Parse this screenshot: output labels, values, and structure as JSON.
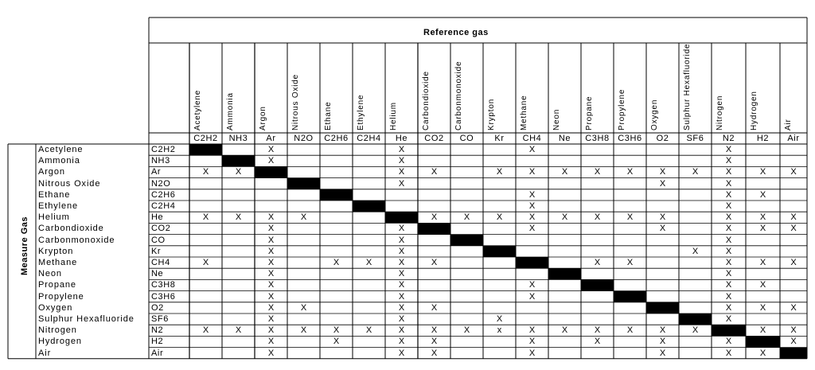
{
  "reference_header": "Reference gas",
  "measure_header": "Measure Gas",
  "reference_gases": [
    {
      "name": "Acetylene",
      "abbr": "C2H2"
    },
    {
      "name": "Ammonia",
      "abbr": "NH3"
    },
    {
      "name": "Argon",
      "abbr": "Ar"
    },
    {
      "name": "Nitrous Oxide",
      "abbr": "N2O"
    },
    {
      "name": "Ethane",
      "abbr": "C2H6"
    },
    {
      "name": "Ethylene",
      "abbr": "C2H4"
    },
    {
      "name": "Helium",
      "abbr": "He"
    },
    {
      "name": "Carbondioxide",
      "abbr": "CO2"
    },
    {
      "name": "Carbonmonoxide",
      "abbr": "CO"
    },
    {
      "name": "Krypton",
      "abbr": "Kr"
    },
    {
      "name": "Methane",
      "abbr": "CH4"
    },
    {
      "name": "Neon",
      "abbr": "Ne"
    },
    {
      "name": "Propane",
      "abbr": "C3H8"
    },
    {
      "name": "Propylene",
      "abbr": "C3H6"
    },
    {
      "name": "Oxygen",
      "abbr": "O2"
    },
    {
      "name": "Sulphur Hexafluoride",
      "abbr": "SF6"
    },
    {
      "name": "Nitrogen",
      "abbr": "N2"
    },
    {
      "name": "Hydrogen",
      "abbr": "H2"
    },
    {
      "name": "Air",
      "abbr": "Air"
    }
  ],
  "measure_gases": [
    {
      "name": "Acetylene",
      "abbr": "C2H2",
      "marks": [
        "",
        "",
        "X",
        "",
        "",
        "",
        "X",
        "",
        "",
        "",
        "X",
        "",
        "",
        "",
        "",
        "",
        "X",
        "",
        ""
      ]
    },
    {
      "name": "Ammonia",
      "abbr": "NH3",
      "marks": [
        "",
        "",
        "X",
        "",
        "",
        "",
        "X",
        "",
        "",
        "",
        "",
        "",
        "",
        "",
        "",
        "",
        "X",
        "",
        ""
      ]
    },
    {
      "name": "Argon",
      "abbr": "Ar",
      "marks": [
        "X",
        "X",
        "",
        "",
        "",
        "",
        "X",
        "X",
        "",
        "X",
        "X",
        "X",
        "X",
        "X",
        "X",
        "X",
        "X",
        "X",
        "X"
      ]
    },
    {
      "name": "Nitrous Oxide",
      "abbr": "N2O",
      "marks": [
        "",
        "",
        "",
        "",
        "",
        "",
        "X",
        "",
        "",
        "",
        "",
        "",
        "",
        "",
        "X",
        "",
        "X",
        "",
        ""
      ]
    },
    {
      "name": "Ethane",
      "abbr": "C2H6",
      "marks": [
        "",
        "",
        "",
        "",
        "",
        "",
        "",
        "",
        "",
        "",
        "X",
        "",
        "",
        "",
        "",
        "",
        "X",
        "X",
        ""
      ]
    },
    {
      "name": "Ethylene",
      "abbr": "C2H4",
      "marks": [
        "",
        "",
        "",
        "",
        "",
        "",
        "",
        "",
        "",
        "",
        "X",
        "",
        "",
        "",
        "",
        "",
        "X",
        "",
        ""
      ]
    },
    {
      "name": "Helium",
      "abbr": "He",
      "marks": [
        "X",
        "X",
        "X",
        "X",
        "",
        "",
        "",
        "X",
        "X",
        "X",
        "X",
        "X",
        "X",
        "X",
        "X",
        "",
        "X",
        "X",
        "X"
      ]
    },
    {
      "name": "Carbondioxide",
      "abbr": "CO2",
      "marks": [
        "",
        "",
        "X",
        "",
        "",
        "",
        "X",
        "",
        "",
        "",
        "X",
        "",
        "",
        "",
        "X",
        "",
        "X",
        "X",
        "X"
      ]
    },
    {
      "name": "Carbonmonoxide",
      "abbr": "CO",
      "marks": [
        "",
        "",
        "X",
        "",
        "",
        "",
        "X",
        "",
        "",
        "",
        "",
        "",
        "",
        "",
        "",
        "",
        "X",
        "",
        ""
      ]
    },
    {
      "name": "Krypton",
      "abbr": "Kr",
      "marks": [
        "",
        "",
        "X",
        "",
        "",
        "",
        "X",
        "",
        "",
        "",
        "",
        "",
        "",
        "",
        "",
        "X",
        "X",
        "",
        ""
      ]
    },
    {
      "name": "Methane",
      "abbr": "CH4",
      "marks": [
        "X",
        "",
        "X",
        "",
        "X",
        "X",
        "X",
        "X",
        "",
        "",
        "",
        "",
        "X",
        "X",
        "",
        "",
        "X",
        "X",
        "X"
      ]
    },
    {
      "name": "Neon",
      "abbr": "Ne",
      "marks": [
        "",
        "",
        "X",
        "",
        "",
        "",
        "X",
        "",
        "",
        "",
        "",
        "",
        "",
        "",
        "",
        "",
        "X",
        "",
        ""
      ]
    },
    {
      "name": "Propane",
      "abbr": "C3H8",
      "marks": [
        "",
        "",
        "X",
        "",
        "",
        "",
        "X",
        "",
        "",
        "",
        "X",
        "",
        "",
        "",
        "",
        "",
        "X",
        "X",
        ""
      ]
    },
    {
      "name": "Propylene",
      "abbr": "C3H6",
      "marks": [
        "",
        "",
        "X",
        "",
        "",
        "",
        "X",
        "",
        "",
        "",
        "X",
        "",
        "",
        "",
        "",
        "",
        "X",
        "",
        ""
      ]
    },
    {
      "name": "Oxygen",
      "abbr": "O2",
      "marks": [
        "",
        "",
        "X",
        "X",
        "",
        "",
        "X",
        "X",
        "",
        "",
        "",
        "",
        "",
        "",
        "",
        "",
        "X",
        "X",
        "X"
      ]
    },
    {
      "name": "Sulphur Hexafluoride",
      "abbr": "SF6",
      "marks": [
        "",
        "",
        "X",
        "",
        "",
        "",
        "X",
        "",
        "",
        "X",
        "",
        "",
        "",
        "",
        "",
        "",
        "X",
        "",
        ""
      ]
    },
    {
      "name": "Nitrogen",
      "abbr": "N2",
      "marks": [
        "X",
        "X",
        "X",
        "X",
        "X",
        "X",
        "X",
        "X",
        "X",
        "x",
        "X",
        "X",
        "X",
        "X",
        "X",
        "X",
        "",
        "X",
        "X"
      ]
    },
    {
      "name": "Hydrogen",
      "abbr": "H2",
      "marks": [
        "",
        "",
        "X",
        "",
        "X",
        "",
        "X",
        "X",
        "",
        "",
        "X",
        "",
        "X",
        "",
        "X",
        "",
        "X",
        "",
        "X"
      ]
    },
    {
      "name": "Air",
      "abbr": "Air",
      "marks": [
        "",
        "",
        "X",
        "",
        "",
        "",
        "X",
        "X",
        "",
        "",
        "X",
        "",
        "",
        "",
        "X",
        "",
        "X",
        "X",
        ""
      ]
    }
  ],
  "colors": {
    "line": "#000000",
    "fill": "#000000",
    "background": "#ffffff"
  }
}
